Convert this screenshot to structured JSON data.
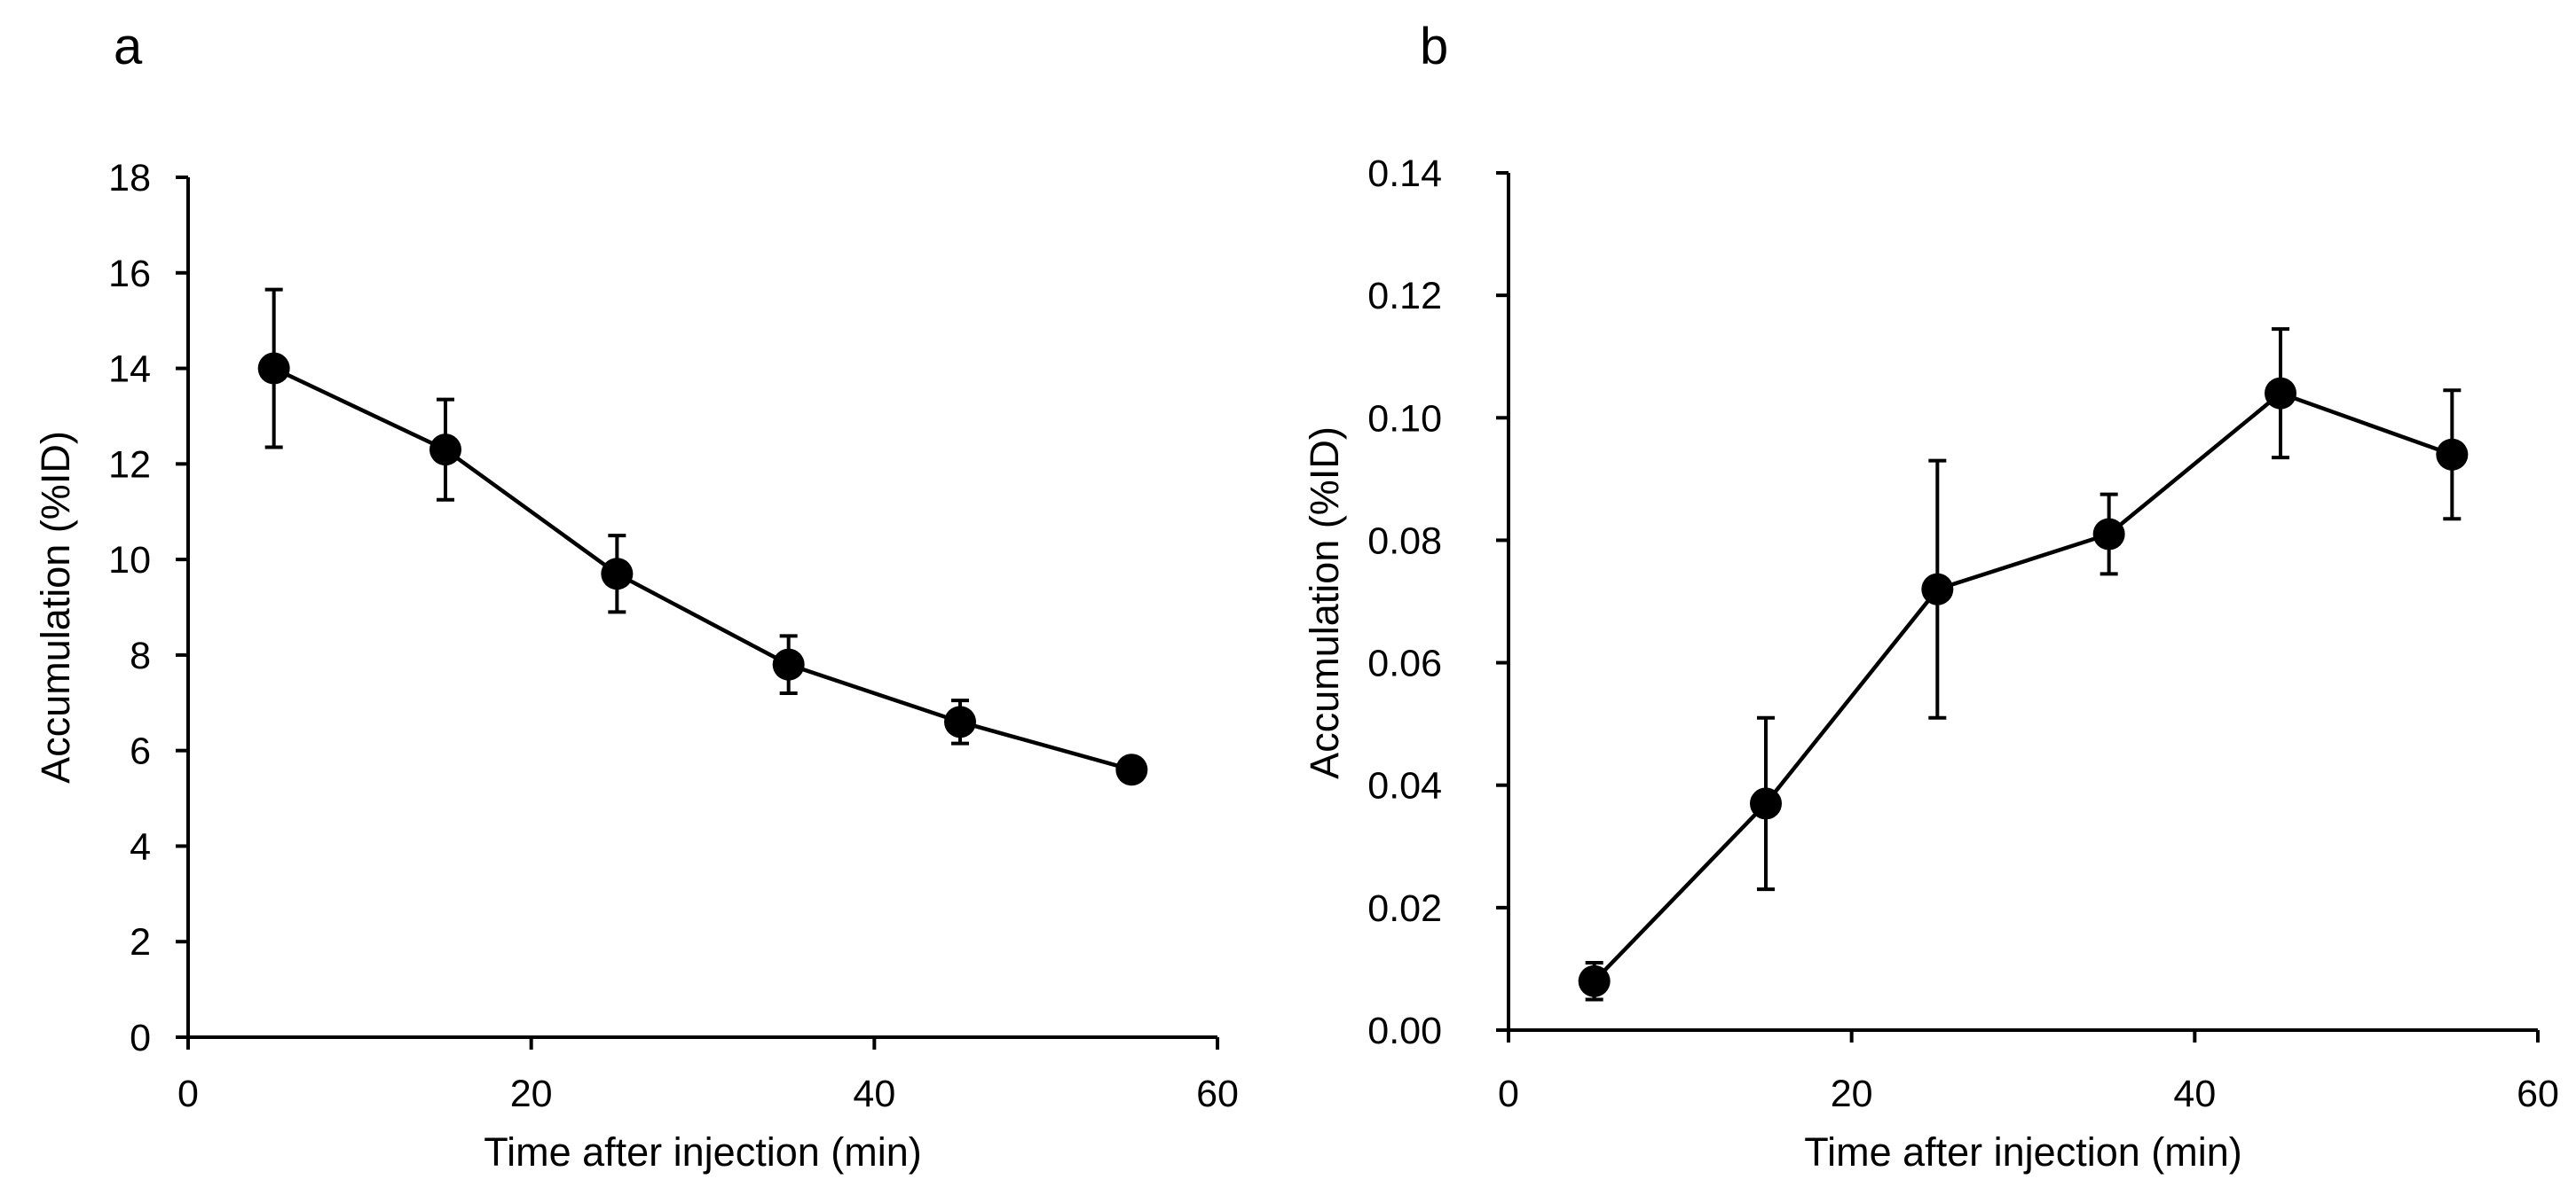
{
  "chart_data": [
    {
      "panel_label": "a",
      "type": "line",
      "title": "",
      "xlabel": "Time after injection (min)",
      "ylabel": "Accumulation (%ID)",
      "xlim": [
        0,
        60
      ],
      "ylim": [
        0,
        18
      ],
      "xticks": [
        0,
        20,
        40,
        60
      ],
      "yticks": [
        0,
        2,
        4,
        6,
        8,
        10,
        12,
        14,
        16,
        18
      ],
      "ytick_labels": [
        "0",
        "2",
        "4",
        "6",
        "8",
        "10",
        "12",
        "14",
        "16",
        "18"
      ],
      "xtick_labels": [
        "0",
        "20",
        "40",
        "60"
      ],
      "grid": false,
      "series": [
        {
          "name": "Accumulation",
          "x": [
            5,
            15,
            25,
            35,
            45,
            55
          ],
          "y": [
            14.0,
            12.3,
            9.7,
            7.8,
            6.6,
            5.6
          ],
          "error": [
            1.65,
            1.05,
            0.8,
            0.6,
            0.45,
            0.1
          ]
        }
      ],
      "colors": {
        "line": "#000000",
        "marker": "#000000"
      }
    },
    {
      "panel_label": "b",
      "type": "line",
      "title": "",
      "xlabel": "Time after injection (min)",
      "ylabel": "Accumulation (%ID)",
      "xlim": [
        0,
        60
      ],
      "ylim": [
        0,
        0.14
      ],
      "xticks": [
        0,
        20,
        40,
        60
      ],
      "yticks": [
        0,
        0.02,
        0.04,
        0.06,
        0.08,
        0.1,
        0.12,
        0.14
      ],
      "ytick_labels": [
        "0.00",
        "0.02",
        "0.04",
        "0.06",
        "0.08",
        "0.10",
        "0.12",
        "0.14"
      ],
      "xtick_labels": [
        "0",
        "20",
        "40",
        "60"
      ],
      "grid": false,
      "series": [
        {
          "name": "Accumulation",
          "x": [
            5,
            15,
            25,
            35,
            45,
            55
          ],
          "y": [
            0.008,
            0.037,
            0.072,
            0.081,
            0.104,
            0.094
          ],
          "error": [
            0.003,
            0.014,
            0.021,
            0.0065,
            0.0105,
            0.0105
          ]
        }
      ],
      "colors": {
        "line": "#000000",
        "marker": "#000000"
      }
    }
  ]
}
